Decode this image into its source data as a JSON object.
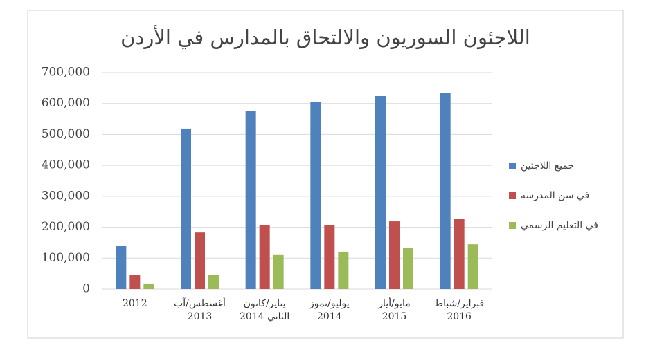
{
  "chart_data": {
    "type": "bar",
    "title": "اللاجئون السوريون والالتحاق بالمدارس في الأردن",
    "categories": [
      "2012",
      "أغسطس/آب\n2013",
      "يناير/كانون\nالثاني 2014",
      "يوليو/تموز\n2014",
      "مايو/أيار\n2015",
      "فبراير/شباط\n2016"
    ],
    "series": [
      {
        "name": "جميع اللاجئين",
        "color": "#4f81bd",
        "values": [
          139000,
          519000,
          575000,
          606000,
          624000,
          633000
        ]
      },
      {
        "name": "في سن المدرسة",
        "color": "#c0504d",
        "values": [
          47000,
          183000,
          206000,
          208000,
          219000,
          226000
        ]
      },
      {
        "name": "في التعليم الرسمي",
        "color": "#9bbb59",
        "values": [
          18000,
          45000,
          110000,
          121000,
          132000,
          145000
        ]
      }
    ],
    "ylim": [
      0,
      700000
    ],
    "yticks": [
      0,
      {
        "value": 100000,
        "label": "100,000"
      },
      {
        "value": 200000,
        "label": "200,000"
      },
      {
        "value": 300000,
        "label": "300,000"
      },
      {
        "value": 400000,
        "label": "400,000"
      },
      {
        "value": 500000,
        "label": "500,000"
      },
      {
        "value": 600000,
        "label": "600,000"
      },
      {
        "value": 700000,
        "label": "700,000"
      }
    ],
    "grid": true,
    "legend": "right"
  }
}
